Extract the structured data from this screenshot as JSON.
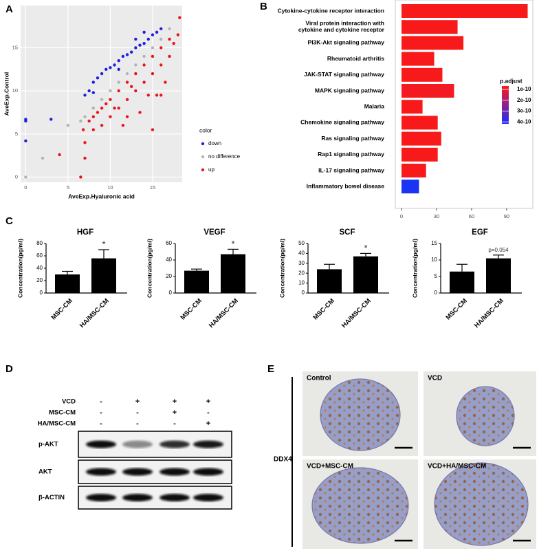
{
  "panel_letters": [
    "A",
    "B",
    "C",
    "D",
    "E"
  ],
  "chart_data": [
    {
      "type": "scatter",
      "x_label": "AveExp.Hyaluronic acid",
      "y_label": "AveExp.Control",
      "legend_title": "color",
      "xlim": [
        -0.6,
        18.5
      ],
      "ylim": [
        -0.6,
        19.9
      ],
      "xticks": [
        0,
        5,
        10,
        15
      ],
      "yticks": [
        0,
        5,
        10,
        15
      ],
      "grid": true,
      "series": [
        {
          "name": "down",
          "color": "#1f1fe0",
          "x": [
            0,
            0,
            0,
            3,
            7,
            7.5,
            8,
            8.5,
            9,
            9.5,
            10,
            10.5,
            11,
            11.5,
            12,
            12.5,
            13,
            13.5,
            14,
            14.5,
            15,
            15.5,
            16,
            13,
            8,
            11,
            14
          ],
          "values": [
            6.7,
            6.5,
            4.2,
            6.7,
            9.5,
            10,
            11,
            11.5,
            12,
            12.5,
            12.7,
            13,
            13.5,
            14,
            14.2,
            14.5,
            15,
            15.3,
            15.5,
            16,
            16.5,
            16.8,
            17.2,
            16,
            9.8,
            12.5,
            16.8
          ]
        },
        {
          "name": "no difference",
          "color": "#b3b3b3",
          "x": [
            0,
            2,
            5,
            6.5,
            7,
            8,
            9,
            10,
            11,
            12,
            13,
            14,
            15,
            16,
            17
          ],
          "values": [
            0,
            2.2,
            6,
            6.5,
            7,
            8,
            9,
            10,
            11,
            12,
            13,
            14,
            15,
            16,
            17.2
          ]
        },
        {
          "name": "up",
          "color": "#e8141d",
          "x": [
            4,
            6.5,
            7,
            7,
            6.8,
            8,
            8.5,
            9,
            9.5,
            10,
            10,
            11,
            11,
            11.5,
            12,
            12,
            12.5,
            13,
            13,
            13.5,
            14,
            14,
            14.5,
            15,
            15,
            15.5,
            16,
            16,
            16.5,
            17,
            17,
            17.5,
            18,
            18.2,
            9,
            10.5,
            8,
            12,
            15,
            16,
            7.5
          ],
          "values": [
            2.6,
            0,
            2.2,
            4,
            5.5,
            7,
            7.5,
            8,
            8.5,
            9,
            7,
            10,
            8,
            6,
            11,
            9,
            10.5,
            12,
            10,
            7.5,
            13,
            11,
            9.5,
            14,
            12,
            9.5,
            15,
            13,
            11,
            16,
            14,
            15.5,
            16.5,
            18.5,
            6,
            8,
            5.5,
            7,
            5.5,
            9.5,
            6.5
          ]
        }
      ]
    },
    {
      "type": "barh",
      "categories": [
        "Cytokine-cytokine receptor interaction",
        "Viral protein interaction with\ncytokine and cytokine receptor",
        "PI3K-Akt signaling pathway",
        "Rheumatoid arthritis",
        "JAK-STAT signaling pathway",
        "MAPK signaling pathway",
        "Malaria",
        "Chemokine signaling pathway",
        "Ras signaling pathway",
        "Rap1 signaling pathway",
        "IL-17 signaling pathway",
        "Inflammatory bowel disease"
      ],
      "values": [
        108,
        48,
        53,
        28,
        35,
        45,
        18,
        31,
        34,
        31,
        21,
        15
      ],
      "colors": [
        "#f81a1a",
        "#f81a1a",
        "#f81a1a",
        "#f81a1a",
        "#f81a1a",
        "#f41a22",
        "#f81a1a",
        "#f81a1a",
        "#f81a1a",
        "#f81a1a",
        "#f81a1a",
        "#1b33f2"
      ],
      "xlim": [
        -5.3,
        112.4
      ],
      "xticks": [
        0,
        30,
        60,
        90
      ],
      "legend_title": "p.adjust",
      "color_scale": [
        "#ff1a1a",
        "#1a2bff"
      ],
      "color_lim": [
        6.8e-11,
        4.18e-10
      ],
      "color_ticks": [
        1e-10,
        2e-10,
        3e-10,
        4e-10
      ]
    },
    {
      "type": "bar",
      "title": "HGF",
      "y_label": "Concentration(pg/ml)",
      "categories": [
        "MSC-CM",
        "HA/MSC-CM"
      ],
      "values": [
        30,
        56
      ],
      "errors": [
        5,
        14
      ],
      "annotations": [
        null,
        "*"
      ],
      "color": "#000000",
      "ylim": [
        0,
        80
      ],
      "yticks": [
        0,
        20,
        40,
        60,
        80
      ]
    },
    {
      "type": "bar",
      "title": "VEGF",
      "y_label": "Concentration(pg/ml)",
      "categories": [
        "MSC-CM",
        "HA/MSC-CM"
      ],
      "values": [
        27,
        47
      ],
      "errors": [
        2,
        6
      ],
      "annotations": [
        null,
        "*"
      ],
      "color": "#000000",
      "ylim": [
        0,
        60
      ],
      "yticks": [
        0,
        20,
        40,
        60
      ]
    },
    {
      "type": "bar",
      "title": "SCF",
      "y_label": "Concentration(pg/ml)",
      "categories": [
        "MSC-CM",
        "HA/MSC-CM"
      ],
      "values": [
        24,
        37
      ],
      "errors": [
        5,
        3
      ],
      "annotations": [
        null,
        "*"
      ],
      "color": "#000000",
      "ylim": [
        0,
        50
      ],
      "yticks": [
        0,
        10,
        20,
        30,
        40,
        50
      ]
    },
    {
      "type": "bar",
      "title": "EGF",
      "y_label": "Concentration(pg/ml)",
      "categories": [
        "MSC-CM",
        "HA/MSC-CM"
      ],
      "values": [
        6.5,
        10.5
      ],
      "errors": [
        2.2,
        1
      ],
      "annotations": [
        null,
        "p=0.054"
      ],
      "color": "#000000",
      "ylim": [
        0,
        15
      ],
      "yticks": [
        0,
        5,
        10,
        15
      ]
    }
  ],
  "blot": {
    "conditions": [
      {
        "label": "VCD",
        "signs": [
          "-",
          "+",
          "+",
          "+"
        ]
      },
      {
        "label": "MSC-CM",
        "signs": [
          "-",
          "-",
          "+",
          "-"
        ]
      },
      {
        "label": "HA/MSC-CM",
        "signs": [
          "-",
          "-",
          "-",
          "+"
        ]
      }
    ],
    "rows": [
      "p-AKT",
      "AKT",
      "β-ACTIN"
    ]
  },
  "histology": {
    "stain": "DDX4",
    "panels": [
      "Control",
      "VCD",
      "VCD+MSC-CM",
      "VCD+HA/MSC-CM"
    ]
  }
}
